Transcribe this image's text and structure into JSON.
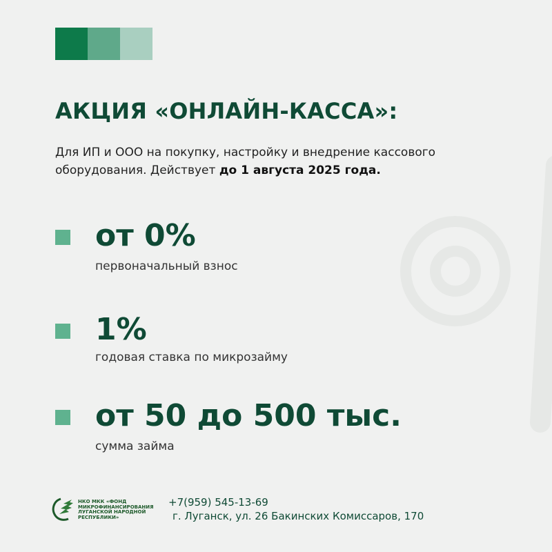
{
  "colors": {
    "dark": "#0d7a4a",
    "mid": "#5fa98a",
    "light": "#a9cfc0",
    "heading": "#0f4a35",
    "bullet": "#5fb28f"
  },
  "title": "АКЦИЯ «ОНЛАЙН-КАССА»:",
  "description": {
    "text": "Для ИП и ООО на покупку, настройку и внедрение кассового оборудования. Действует ",
    "bold": "до 1 августа 2025 года."
  },
  "items": [
    {
      "value": "от 0%",
      "label": "первоначальный взнос"
    },
    {
      "value": "1%",
      "label": "годовая ставка по микрозайму"
    },
    {
      "value": "от 50 до 500 тыс.",
      "label": "сумма займа"
    }
  ],
  "footer": {
    "org_name": "НКО МКК «ФОНД МИКРОФИНАНСИРОВАНИЯ ЛУГАНСКОЙ НАРОДНОЙ РЕСПУБЛИКИ»",
    "phone": "+7(959) 545-13-69",
    "address": "г. Луганск, ул. 26 Бакинских Комиссаров, 170",
    "logo_icon": "tree-globe-logo"
  }
}
